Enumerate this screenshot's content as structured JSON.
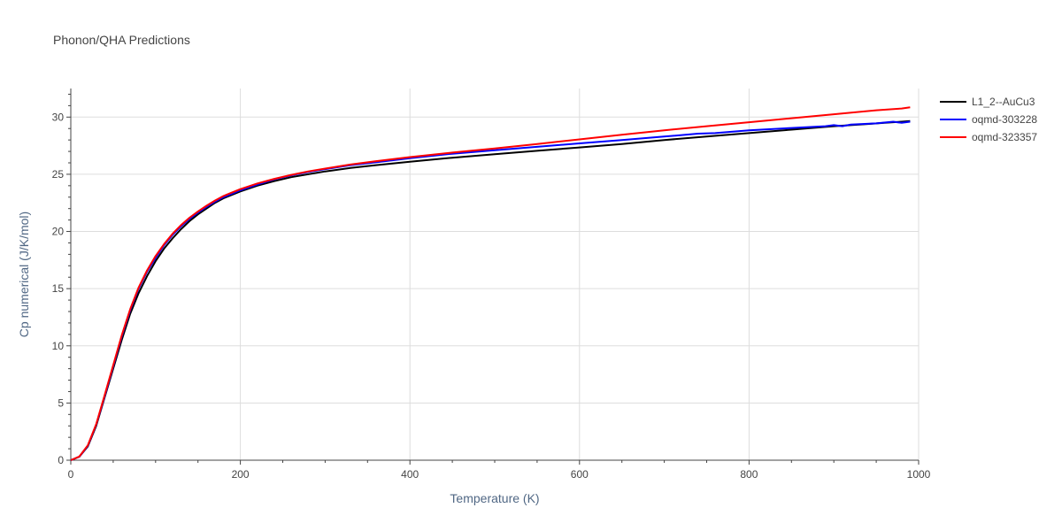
{
  "chart_data": {
    "type": "line",
    "title": "Phonon/QHA Predictions",
    "xlabel": "Temperature (K)",
    "ylabel": "Cp numerical (J/K/mol)",
    "xlim": [
      0,
      1000
    ],
    "ylim": [
      0,
      32.5
    ],
    "x_ticks": [
      0,
      200,
      400,
      600,
      800,
      1000
    ],
    "y_ticks": [
      0,
      5,
      10,
      15,
      20,
      25,
      30
    ],
    "grid": true,
    "legend_position": "top-right",
    "series": [
      {
        "name": "L1_2--AuCu3",
        "color": "#000000",
        "x": [
          0,
          10,
          20,
          30,
          40,
          50,
          60,
          70,
          80,
          90,
          100,
          110,
          120,
          130,
          140,
          150,
          160,
          170,
          180,
          190,
          200,
          220,
          240,
          260,
          280,
          300,
          330,
          360,
          400,
          450,
          500,
          550,
          600,
          650,
          700,
          750,
          800,
          850,
          900,
          920,
          940,
          960,
          970,
          980,
          990
        ],
        "y": [
          0,
          0.3,
          1.2,
          3.0,
          5.5,
          8.0,
          10.5,
          12.8,
          14.6,
          16.1,
          17.4,
          18.5,
          19.4,
          20.2,
          20.9,
          21.5,
          22.0,
          22.5,
          22.9,
          23.2,
          23.5,
          24.0,
          24.4,
          24.75,
          25.0,
          25.25,
          25.55,
          25.8,
          26.1,
          26.45,
          26.75,
          27.05,
          27.35,
          27.65,
          28.0,
          28.3,
          28.6,
          28.9,
          29.2,
          29.3,
          29.4,
          29.5,
          29.55,
          29.6,
          29.65
        ]
      },
      {
        "name": "oqmd-303228",
        "color": "#0000ff",
        "x": [
          0,
          10,
          20,
          30,
          40,
          50,
          60,
          70,
          80,
          90,
          100,
          110,
          120,
          130,
          140,
          150,
          160,
          170,
          180,
          190,
          200,
          220,
          240,
          260,
          280,
          300,
          330,
          360,
          400,
          450,
          500,
          550,
          600,
          650,
          700,
          740,
          760,
          800,
          850,
          890,
          900,
          910,
          920,
          950,
          970,
          980,
          990
        ],
        "y": [
          0,
          0.3,
          1.25,
          3.1,
          5.6,
          8.2,
          10.8,
          13.1,
          15.0,
          16.5,
          17.7,
          18.8,
          19.7,
          20.45,
          21.1,
          21.65,
          22.15,
          22.6,
          23.0,
          23.3,
          23.6,
          24.1,
          24.55,
          24.9,
          25.2,
          25.45,
          25.8,
          26.05,
          26.4,
          26.8,
          27.1,
          27.4,
          27.7,
          28.0,
          28.3,
          28.55,
          28.6,
          28.85,
          29.05,
          29.2,
          29.3,
          29.2,
          29.35,
          29.45,
          29.6,
          29.5,
          29.6
        ]
      },
      {
        "name": "oqmd-323357",
        "color": "#ff0000",
        "x": [
          0,
          10,
          20,
          30,
          40,
          50,
          60,
          70,
          80,
          90,
          100,
          110,
          120,
          130,
          140,
          150,
          160,
          170,
          180,
          190,
          200,
          220,
          240,
          260,
          280,
          300,
          330,
          360,
          400,
          450,
          500,
          550,
          600,
          650,
          700,
          750,
          800,
          850,
          900,
          950,
          980,
          990
        ],
        "y": [
          0,
          0.32,
          1.3,
          3.15,
          5.7,
          8.3,
          10.9,
          13.2,
          15.1,
          16.6,
          17.85,
          18.9,
          19.8,
          20.55,
          21.2,
          21.75,
          22.25,
          22.7,
          23.1,
          23.4,
          23.7,
          24.2,
          24.6,
          24.95,
          25.25,
          25.5,
          25.85,
          26.15,
          26.5,
          26.9,
          27.25,
          27.65,
          28.05,
          28.45,
          28.85,
          29.2,
          29.55,
          29.9,
          30.25,
          30.6,
          30.75,
          30.85
        ]
      }
    ]
  }
}
